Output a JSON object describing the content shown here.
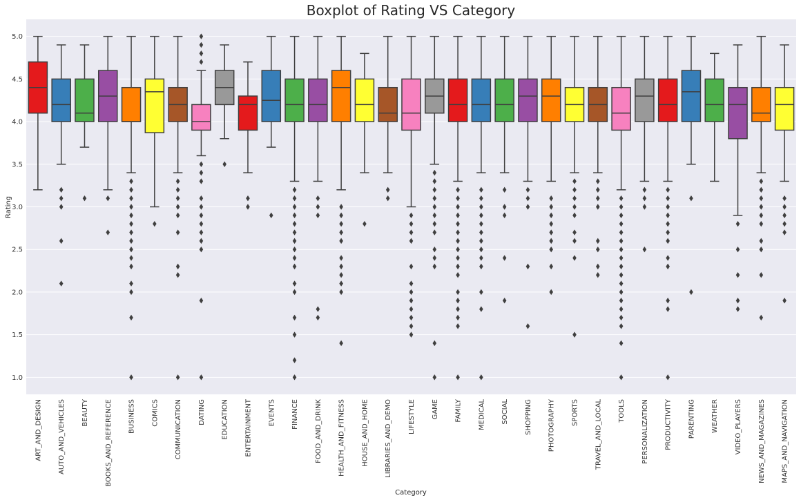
{
  "chart_data": {
    "type": "boxplot",
    "title": "Boxplot of Rating VS Category",
    "xlabel": "Category",
    "ylabel": "Rating",
    "ylim": [
      0.8,
      5.2
    ],
    "yticks": [
      "1.0",
      "1.5",
      "2.0",
      "2.5",
      "3.0",
      "3.5",
      "4.0",
      "4.5",
      "5.0"
    ],
    "grid": true,
    "background": "#EAEAF2",
    "palette": [
      "#E41A1C",
      "#377EB8",
      "#4DAF4A",
      "#984EA3",
      "#FF7F00",
      "#FFFF33",
      "#A65628",
      "#F781BF",
      "#999999"
    ],
    "categories": [
      "ART_AND_DESIGN",
      "AUTO_AND_VEHICLES",
      "BEAUTY",
      "BOOKS_AND_REFERENCE",
      "BUSINESS",
      "COMICS",
      "COMMUNICATION",
      "DATING",
      "EDUCATION",
      "ENTERTAINMENT",
      "EVENTS",
      "FINANCE",
      "FOOD_AND_DRINK",
      "HEALTH_AND_FITNESS",
      "HOUSE_AND_HOME",
      "LIBRARIES_AND_DEMO",
      "LIFESTYLE",
      "GAME",
      "FAMILY",
      "MEDICAL",
      "SOCIAL",
      "SHOPPING",
      "PHOTOGRAPHY",
      "SPORTS",
      "TRAVEL_AND_LOCAL",
      "TOOLS",
      "PERSONALIZATION",
      "PRODUCTIVITY",
      "PARENTING",
      "WEATHER",
      "VIDEO_PLAYERS",
      "NEWS_AND_MAGAZINES",
      "MAPS_AND_NAVIGATION"
    ],
    "boxes": [
      {
        "whisker_low": 3.2,
        "q1": 4.1,
        "median": 4.4,
        "q3": 4.7,
        "whisker_high": 5.0,
        "outliers": []
      },
      {
        "whisker_low": 3.5,
        "q1": 4.0,
        "median": 4.2,
        "q3": 4.5,
        "whisker_high": 4.9,
        "outliers": [
          3.2,
          3.1,
          3.0,
          2.6,
          2.1
        ]
      },
      {
        "whisker_low": 3.7,
        "q1": 4.0,
        "median": 4.1,
        "q3": 4.5,
        "whisker_high": 4.9,
        "outliers": [
          3.1
        ]
      },
      {
        "whisker_low": 3.2,
        "q1": 4.0,
        "median": 4.3,
        "q3": 4.6,
        "whisker_high": 5.0,
        "outliers": [
          3.1,
          2.7
        ]
      },
      {
        "whisker_low": 3.4,
        "q1": 4.0,
        "median": 4.0,
        "q3": 4.4,
        "whisker_high": 5.0,
        "outliers": [
          3.3,
          3.2,
          3.1,
          3.0,
          2.9,
          2.8,
          2.7,
          2.6,
          2.5,
          2.4,
          2.3,
          2.1,
          2.0,
          1.7,
          1.0
        ]
      },
      {
        "whisker_low": 3.0,
        "q1": 3.87,
        "median": 4.35,
        "q3": 4.5,
        "whisker_high": 5.0,
        "outliers": [
          2.8
        ]
      },
      {
        "whisker_low": 3.4,
        "q1": 4.0,
        "median": 4.2,
        "q3": 4.4,
        "whisker_high": 5.0,
        "outliers": [
          3.3,
          3.2,
          3.1,
          3.0,
          2.9,
          2.7,
          2.3,
          2.2,
          1.0
        ]
      },
      {
        "whisker_low": 3.6,
        "q1": 3.9,
        "median": 4.0,
        "q3": 4.2,
        "whisker_high": 4.6,
        "outliers": [
          5.0,
          4.9,
          4.8,
          4.7,
          3.5,
          3.4,
          3.3,
          3.1,
          3.0,
          2.9,
          2.8,
          2.7,
          2.6,
          2.5,
          1.9,
          1.0
        ]
      },
      {
        "whisker_low": 3.8,
        "q1": 4.2,
        "median": 4.4,
        "q3": 4.6,
        "whisker_high": 4.9,
        "outliers": [
          3.5
        ]
      },
      {
        "whisker_low": 3.4,
        "q1": 3.9,
        "median": 4.2,
        "q3": 4.3,
        "whisker_high": 4.7,
        "outliers": [
          3.1,
          3.0
        ]
      },
      {
        "whisker_low": 3.7,
        "q1": 4.0,
        "median": 4.25,
        "q3": 4.6,
        "whisker_high": 5.0,
        "outliers": [
          2.9
        ]
      },
      {
        "whisker_low": 3.3,
        "q1": 4.0,
        "median": 4.2,
        "q3": 4.5,
        "whisker_high": 5.0,
        "outliers": [
          3.2,
          3.1,
          3.0,
          2.9,
          2.8,
          2.7,
          2.6,
          2.5,
          2.4,
          2.3,
          2.1,
          2.0,
          1.7,
          1.5,
          1.2,
          1.0
        ]
      },
      {
        "whisker_low": 3.3,
        "q1": 4.0,
        "median": 4.2,
        "q3": 4.5,
        "whisker_high": 5.0,
        "outliers": [
          3.1,
          3.0,
          2.9,
          1.8,
          1.7
        ]
      },
      {
        "whisker_low": 3.2,
        "q1": 4.0,
        "median": 4.4,
        "q3": 4.6,
        "whisker_high": 5.0,
        "outliers": [
          3.0,
          2.9,
          2.8,
          2.7,
          2.6,
          2.4,
          2.3,
          2.2,
          2.1,
          2.0,
          1.4
        ]
      },
      {
        "whisker_low": 3.4,
        "q1": 4.0,
        "median": 4.2,
        "q3": 4.5,
        "whisker_high": 4.8,
        "outliers": [
          2.8
        ]
      },
      {
        "whisker_low": 3.4,
        "q1": 4.0,
        "median": 4.1,
        "q3": 4.4,
        "whisker_high": 5.0,
        "outliers": [
          3.2,
          3.1
        ]
      },
      {
        "whisker_low": 3.0,
        "q1": 3.9,
        "median": 4.1,
        "q3": 4.5,
        "whisker_high": 5.0,
        "outliers": [
          2.9,
          2.8,
          2.7,
          2.6,
          2.3,
          2.1,
          2.0,
          1.9,
          1.8,
          1.7,
          1.6,
          1.5
        ]
      },
      {
        "whisker_low": 3.5,
        "q1": 4.1,
        "median": 4.3,
        "q3": 4.5,
        "whisker_high": 5.0,
        "outliers": [
          3.4,
          3.3,
          3.2,
          3.1,
          3.0,
          2.9,
          2.8,
          2.7,
          2.5,
          2.4,
          2.3,
          1.4,
          1.0
        ]
      },
      {
        "whisker_low": 3.3,
        "q1": 4.0,
        "median": 4.2,
        "q3": 4.5,
        "whisker_high": 5.0,
        "outliers": [
          3.2,
          3.1,
          3.0,
          2.9,
          2.8,
          2.7,
          2.6,
          2.5,
          2.4,
          2.3,
          2.2,
          2.0,
          1.9,
          1.8,
          1.7,
          1.6,
          1.0
        ]
      },
      {
        "whisker_low": 3.4,
        "q1": 4.0,
        "median": 4.2,
        "q3": 4.5,
        "whisker_high": 5.0,
        "outliers": [
          3.2,
          3.1,
          3.0,
          2.9,
          2.8,
          2.7,
          2.6,
          2.5,
          2.4,
          2.3,
          2.0,
          1.8,
          1.0
        ]
      },
      {
        "whisker_low": 3.4,
        "q1": 4.0,
        "median": 4.2,
        "q3": 4.5,
        "whisker_high": 5.0,
        "outliers": [
          3.2,
          3.0,
          2.9,
          2.4,
          1.9
        ]
      },
      {
        "whisker_low": 3.3,
        "q1": 4.0,
        "median": 4.3,
        "q3": 4.5,
        "whisker_high": 5.0,
        "outliers": [
          3.2,
          3.1,
          3.0,
          2.3,
          1.6
        ]
      },
      {
        "whisker_low": 3.3,
        "q1": 4.0,
        "median": 4.3,
        "q3": 4.5,
        "whisker_high": 5.0,
        "outliers": [
          3.1,
          3.0,
          2.9,
          2.8,
          2.7,
          2.6,
          2.5,
          2.3,
          2.0
        ]
      },
      {
        "whisker_low": 3.4,
        "q1": 4.0,
        "median": 4.2,
        "q3": 4.4,
        "whisker_high": 5.0,
        "outliers": [
          3.3,
          3.2,
          3.1,
          3.0,
          2.9,
          2.7,
          2.6,
          2.4,
          1.5
        ]
      },
      {
        "whisker_low": 3.4,
        "q1": 4.0,
        "median": 4.2,
        "q3": 4.4,
        "whisker_high": 5.0,
        "outliers": [
          3.3,
          3.2,
          3.1,
          3.0,
          2.6,
          2.5,
          2.3,
          2.2
        ]
      },
      {
        "whisker_low": 3.2,
        "q1": 3.9,
        "median": 4.1,
        "q3": 4.4,
        "whisker_high": 5.0,
        "outliers": [
          3.1,
          3.0,
          2.9,
          2.8,
          2.7,
          2.6,
          2.5,
          2.4,
          2.3,
          2.2,
          2.1,
          2.0,
          1.9,
          1.8,
          1.7,
          1.6,
          1.4,
          1.0
        ]
      },
      {
        "whisker_low": 3.3,
        "q1": 4.0,
        "median": 4.3,
        "q3": 4.5,
        "whisker_high": 5.0,
        "outliers": [
          3.2,
          3.1,
          3.0,
          2.5
        ]
      },
      {
        "whisker_low": 3.3,
        "q1": 4.0,
        "median": 4.2,
        "q3": 4.5,
        "whisker_high": 5.0,
        "outliers": [
          3.2,
          3.1,
          3.0,
          2.9,
          2.8,
          2.7,
          2.6,
          2.4,
          2.3,
          1.9,
          1.8,
          1.0
        ]
      },
      {
        "whisker_low": 3.5,
        "q1": 4.0,
        "median": 4.35,
        "q3": 4.6,
        "whisker_high": 5.0,
        "outliers": [
          3.1,
          2.0
        ]
      },
      {
        "whisker_low": 3.3,
        "q1": 4.0,
        "median": 4.2,
        "q3": 4.5,
        "whisker_high": 4.8,
        "outliers": []
      },
      {
        "whisker_low": 2.9,
        "q1": 3.8,
        "median": 4.2,
        "q3": 4.4,
        "whisker_high": 4.9,
        "outliers": [
          2.8,
          2.5,
          2.2,
          1.9,
          1.8
        ]
      },
      {
        "whisker_low": 3.4,
        "q1": 4.0,
        "median": 4.1,
        "q3": 4.4,
        "whisker_high": 5.0,
        "outliers": [
          3.3,
          3.2,
          3.1,
          3.0,
          2.9,
          2.8,
          2.6,
          2.5,
          2.2,
          1.7
        ]
      },
      {
        "whisker_low": 3.3,
        "q1": 3.9,
        "median": 4.2,
        "q3": 4.4,
        "whisker_high": 4.9,
        "outliers": [
          3.1,
          3.0,
          2.9,
          2.8,
          2.7,
          1.9
        ]
      }
    ]
  }
}
